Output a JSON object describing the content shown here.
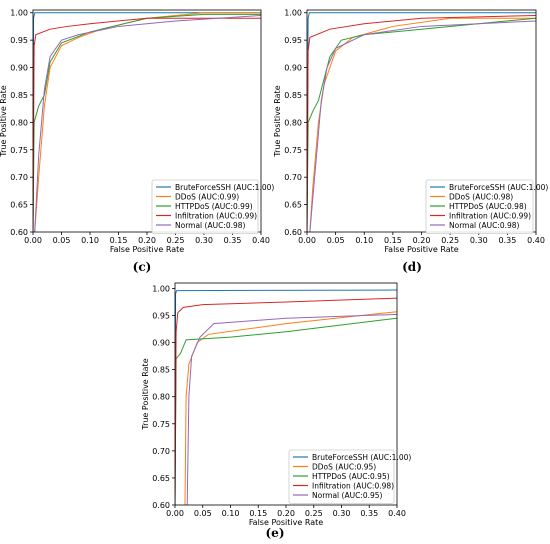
{
  "figure": {
    "panels": [
      {
        "label": "(c)"
      },
      {
        "label": "(d)"
      },
      {
        "label": "(e)"
      }
    ]
  },
  "chart_data": [
    {
      "type": "line",
      "panel_label": "(c)",
      "xlabel": "False Positive Rate",
      "ylabel": "True Positive Rate",
      "xlim": [
        0,
        0.4
      ],
      "ylim": [
        0.6,
        1.005
      ],
      "xticks": [
        "0.00",
        "0.05",
        "0.10",
        "0.15",
        "0.20",
        "0.25",
        "0.30",
        "0.35",
        "0.40"
      ],
      "yticks": [
        "0.60",
        "0.65",
        "0.70",
        "0.75",
        "0.80",
        "0.85",
        "0.90",
        "0.95",
        "1.00"
      ],
      "legend_position": "lower-right",
      "series": [
        {
          "name": "BruteForceSSH (AUC:1.00)",
          "color": "#1f77b4",
          "points": [
            [
              0,
              0.6
            ],
            [
              0.001,
              0.99
            ],
            [
              0.003,
              1.0
            ],
            [
              0.4,
              1.0
            ]
          ]
        },
        {
          "name": "DDoS (AUC:0.99)",
          "color": "#ff7f0e",
          "points": [
            [
              0.003,
              0.6
            ],
            [
              0.01,
              0.7
            ],
            [
              0.02,
              0.83
            ],
            [
              0.03,
              0.9
            ],
            [
              0.05,
              0.94
            ],
            [
              0.08,
              0.955
            ],
            [
              0.12,
              0.97
            ],
            [
              0.2,
              0.99
            ],
            [
              0.3,
              1.0
            ],
            [
              0.4,
              1.0
            ]
          ]
        },
        {
          "name": "HTTPDoS (AUC:0.99)",
          "color": "#2ca02c",
          "points": [
            [
              0,
              0.6
            ],
            [
              0.002,
              0.8
            ],
            [
              0.01,
              0.83
            ],
            [
              0.02,
              0.85
            ],
            [
              0.03,
              0.91
            ],
            [
              0.05,
              0.945
            ],
            [
              0.1,
              0.965
            ],
            [
              0.2,
              0.99
            ],
            [
              0.3,
              0.997
            ],
            [
              0.4,
              0.997
            ]
          ]
        },
        {
          "name": "Infiltration (AUC:0.99)",
          "color": "#d62728",
          "points": [
            [
              0,
              0.6
            ],
            [
              0.002,
              0.94
            ],
            [
              0.005,
              0.96
            ],
            [
              0.03,
              0.97
            ],
            [
              0.06,
              0.975
            ],
            [
              0.1,
              0.98
            ],
            [
              0.2,
              0.99
            ],
            [
              0.4,
              0.99
            ]
          ]
        },
        {
          "name": "Normal (AUC:0.98)",
          "color": "#9467bd",
          "points": [
            [
              0.003,
              0.6
            ],
            [
              0.01,
              0.74
            ],
            [
              0.02,
              0.86
            ],
            [
              0.03,
              0.92
            ],
            [
              0.05,
              0.95
            ],
            [
              0.08,
              0.96
            ],
            [
              0.15,
              0.975
            ],
            [
              0.25,
              0.985
            ],
            [
              0.4,
              0.995
            ]
          ]
        }
      ]
    },
    {
      "type": "line",
      "panel_label": "(d)",
      "xlabel": "False Positive Rate",
      "ylabel": "True Positive Rate",
      "xlim": [
        0,
        0.4
      ],
      "ylim": [
        0.6,
        1.005
      ],
      "xticks": [
        "0.00",
        "0.05",
        "0.10",
        "0.15",
        "0.20",
        "0.25",
        "0.30",
        "0.35",
        "0.40"
      ],
      "yticks": [
        "0.60",
        "0.65",
        "0.70",
        "0.75",
        "0.80",
        "0.85",
        "0.90",
        "0.95",
        "1.00"
      ],
      "legend_position": "lower-right",
      "series": [
        {
          "name": "BruteForceSSH (AUC:1.00)",
          "color": "#1f77b4",
          "points": [
            [
              0,
              0.6
            ],
            [
              0.002,
              0.99
            ],
            [
              0.004,
              1.0
            ],
            [
              0.4,
              1.0
            ]
          ]
        },
        {
          "name": "DDoS (AUC:0.98)",
          "color": "#ff7f0e",
          "points": [
            [
              0.005,
              0.6
            ],
            [
              0.01,
              0.68
            ],
            [
              0.02,
              0.8
            ],
            [
              0.03,
              0.87
            ],
            [
              0.05,
              0.93
            ],
            [
              0.08,
              0.955
            ],
            [
              0.15,
              0.975
            ],
            [
              0.25,
              0.99
            ],
            [
              0.4,
              0.99
            ]
          ]
        },
        {
          "name": "HTTPDoS (AUC:0.98)",
          "color": "#2ca02c",
          "points": [
            [
              0,
              0.6
            ],
            [
              0.002,
              0.8
            ],
            [
              0.01,
              0.82
            ],
            [
              0.02,
              0.84
            ],
            [
              0.04,
              0.92
            ],
            [
              0.06,
              0.95
            ],
            [
              0.1,
              0.96
            ],
            [
              0.2,
              0.97
            ],
            [
              0.4,
              0.99
            ]
          ]
        },
        {
          "name": "Infiltration (AUC:0.99)",
          "color": "#d62728",
          "points": [
            [
              0,
              0.6
            ],
            [
              0.002,
              0.93
            ],
            [
              0.005,
              0.955
            ],
            [
              0.04,
              0.97
            ],
            [
              0.1,
              0.98
            ],
            [
              0.2,
              0.99
            ],
            [
              0.4,
              0.995
            ]
          ]
        },
        {
          "name": "Normal (AUC:0.98)",
          "color": "#9467bd",
          "points": [
            [
              0.005,
              0.6
            ],
            [
              0.015,
              0.72
            ],
            [
              0.025,
              0.84
            ],
            [
              0.035,
              0.9
            ],
            [
              0.05,
              0.935
            ],
            [
              0.1,
              0.96
            ],
            [
              0.2,
              0.975
            ],
            [
              0.4,
              0.985
            ]
          ]
        }
      ]
    },
    {
      "type": "line",
      "panel_label": "(e)",
      "xlabel": "False Positive Rate",
      "ylabel": "True Positive Rate",
      "xlim": [
        0,
        0.4
      ],
      "ylim": [
        0.6,
        1.01
      ],
      "xticks": [
        "0.00",
        "0.05",
        "0.10",
        "0.15",
        "0.20",
        "0.25",
        "0.30",
        "0.35",
        "0.40"
      ],
      "yticks": [
        "0.60",
        "0.65",
        "0.70",
        "0.75",
        "0.80",
        "0.85",
        "0.90",
        "0.95",
        "1.00"
      ],
      "legend_position": "lower-right",
      "series": [
        {
          "name": "BruteForceSSH (AUC:1.00)",
          "color": "#1f77b4",
          "points": [
            [
              0,
              0.6
            ],
            [
              0.001,
              0.99
            ],
            [
              0.003,
              0.996
            ],
            [
              0.4,
              0.997
            ]
          ]
        },
        {
          "name": "DDoS (AUC:0.95)",
          "color": "#ff7f0e",
          "points": [
            [
              0.018,
              0.6
            ],
            [
              0.02,
              0.8
            ],
            [
              0.025,
              0.86
            ],
            [
              0.04,
              0.9
            ],
            [
              0.06,
              0.915
            ],
            [
              0.2,
              0.935
            ],
            [
              0.4,
              0.957
            ]
          ]
        },
        {
          "name": "HTTPDoS (AUC:0.95)",
          "color": "#2ca02c",
          "points": [
            [
              0,
              0.6
            ],
            [
              0.002,
              0.87
            ],
            [
              0.01,
              0.88
            ],
            [
              0.02,
              0.905
            ],
            [
              0.1,
              0.91
            ],
            [
              0.2,
              0.92
            ],
            [
              0.4,
              0.945
            ]
          ]
        },
        {
          "name": "Infiltration (AUC:0.98)",
          "color": "#d62728",
          "points": [
            [
              0,
              0.6
            ],
            [
              0.002,
              0.92
            ],
            [
              0.005,
              0.955
            ],
            [
              0.015,
              0.965
            ],
            [
              0.05,
              0.97
            ],
            [
              0.2,
              0.975
            ],
            [
              0.4,
              0.982
            ]
          ]
        },
        {
          "name": "Normal (AUC:0.95)",
          "color": "#9467bd",
          "points": [
            [
              0.022,
              0.6
            ],
            [
              0.025,
              0.8
            ],
            [
              0.03,
              0.875
            ],
            [
              0.045,
              0.91
            ],
            [
              0.07,
              0.935
            ],
            [
              0.2,
              0.945
            ],
            [
              0.4,
              0.952
            ]
          ]
        }
      ]
    }
  ]
}
